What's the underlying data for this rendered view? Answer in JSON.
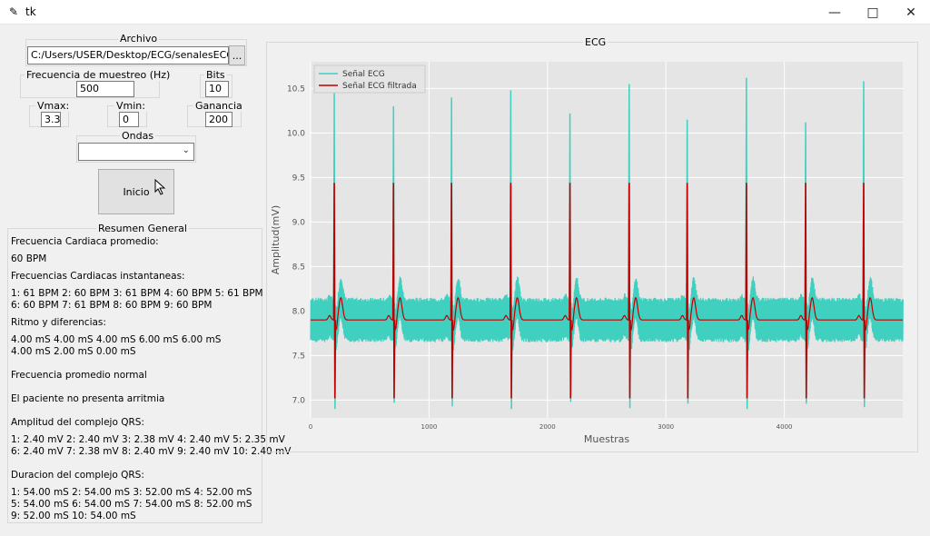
{
  "window": {
    "title": "tk"
  },
  "archivo": {
    "legend": "Archivo",
    "path": "C:/Users/USER/Desktop/ECG/senalesECG/Gru",
    "browse_label": "..."
  },
  "frecuencia": {
    "legend": "Frecuencia de muestreo (Hz)",
    "value": "500"
  },
  "bits": {
    "legend": "Bits",
    "value": "10"
  },
  "vmax": {
    "legend": "Vmax:",
    "value": "3.3"
  },
  "vmin": {
    "legend": "Vmin:",
    "value": "0"
  },
  "ganancia": {
    "legend": "Ganancia",
    "value": "200"
  },
  "ondas": {
    "legend": "Ondas",
    "selected": ""
  },
  "inicio_label": "Inicio",
  "resumen": {
    "legend": "Resumen General",
    "lines": [
      "Frecuencia Cardiaca promedio:",
      "60 BPM",
      "Frecuencias Cardiacas instantaneas:",
      "1: 61 BPM 2: 60 BPM 3: 61 BPM 4: 60 BPM 5: 61 BPM",
      "6: 60 BPM 7: 61 BPM 8: 60 BPM 9: 60 BPM",
      "Ritmo y diferencias:",
      "4.00 mS 4.00 mS 4.00 mS 6.00 mS 6.00 mS",
      "4.00 mS 2.00 mS 0.00 mS",
      "Frecuencia promedio normal",
      "El paciente no presenta arritmia",
      "Amplitud del complejo QRS:",
      "1: 2.40 mV 2: 2.40 mV 3: 2.38 mV 4: 2.40 mV 5: 2.35 mV",
      "6: 2.40 mV 7: 2.38 mV 8: 2.40 mV 9: 2.40 mV 10: 2.40 mV",
      "Duracion del complejo QRS:",
      "1: 54.00 mS 2: 54.00 mS 3: 52.00 mS 4: 52.00 mS",
      "5: 54.00 mS 6: 54.00 mS 7: 54.00 mS 8: 52.00 mS",
      "9: 52.00 mS 10: 54.00 mS"
    ]
  },
  "ecg_panel": {
    "legend": "ECG"
  },
  "chart_data": {
    "type": "line",
    "title": "",
    "xlabel": "Muestras",
    "ylabel": "Amplitud(mV)",
    "xlim": [
      0,
      5000
    ],
    "ylim": [
      6.8,
      10.8
    ],
    "xticks": [
      "0",
      "1000",
      "2000",
      "3000",
      "4000"
    ],
    "yticks": [
      "7.0",
      "7.5",
      "8.0",
      "8.5",
      "9.0",
      "9.5",
      "10.0",
      "10.5"
    ],
    "grid": true,
    "legend_position": "top-left",
    "series": [
      {
        "name": "Señal ECG",
        "color": "#40d0c0",
        "baseline": 7.9,
        "noise_band": [
          7.65,
          8.15
        ],
        "r_peaks_x": [
          200,
          700,
          1190,
          1690,
          2190,
          2690,
          3180,
          3680,
          4180,
          4670
        ],
        "r_peaks_y": [
          10.45,
          10.3,
          10.4,
          10.48,
          10.22,
          10.55,
          10.15,
          10.62,
          10.12,
          10.58
        ],
        "s_trough_y": [
          6.9,
          6.97,
          6.93,
          6.9,
          6.98,
          6.91,
          6.96,
          6.9,
          6.96,
          6.92
        ]
      },
      {
        "name": "Señal ECG filtrada",
        "color": "#c00000",
        "baseline": 7.9,
        "r_peaks_x": [
          200,
          700,
          1190,
          1690,
          2190,
          2690,
          3180,
          3680,
          4180,
          4670
        ],
        "r_peaks_y": [
          9.44,
          9.44,
          9.44,
          9.44,
          9.44,
          9.44,
          9.44,
          9.44,
          9.44,
          9.44
        ],
        "s_trough_y": [
          7.02,
          7.02,
          7.02,
          7.02,
          7.02,
          7.02,
          7.02,
          7.02,
          7.02,
          7.02
        ]
      }
    ]
  }
}
